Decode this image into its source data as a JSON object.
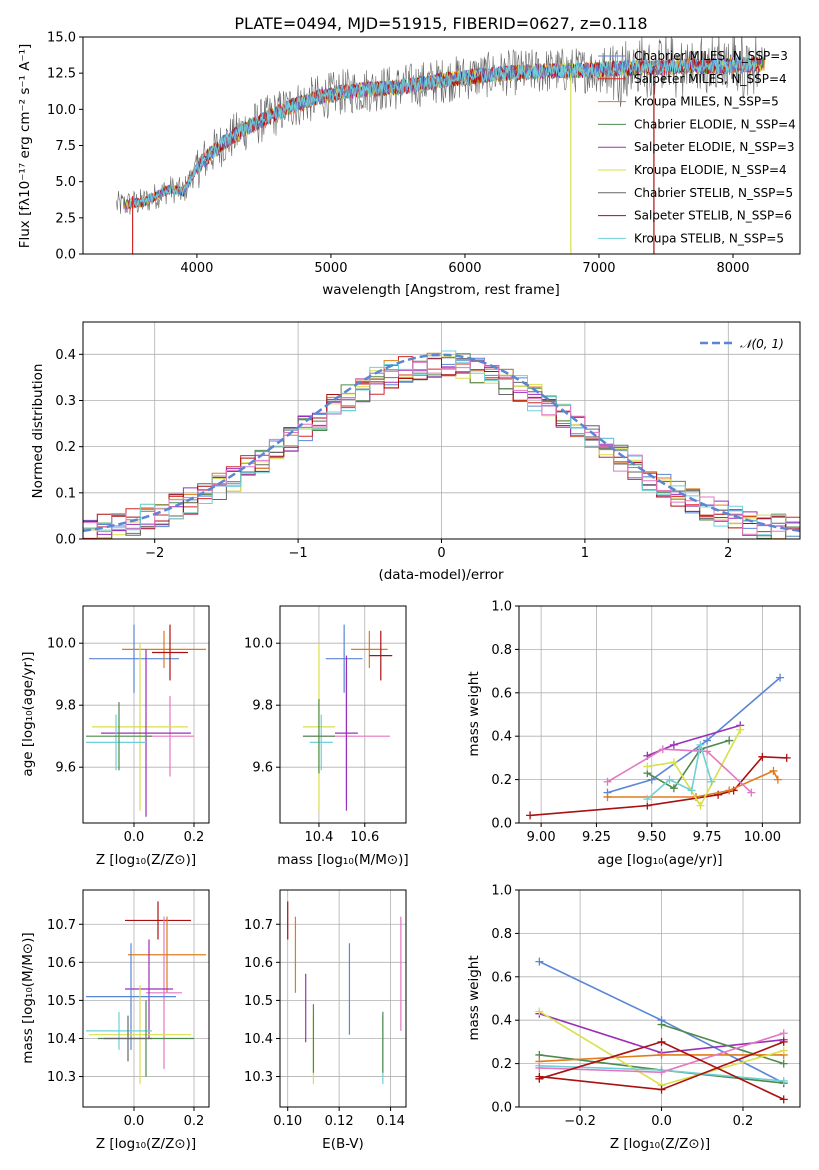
{
  "chart_data": [
    {
      "id": "spectrum",
      "type": "line",
      "title": "PLATE=0494, MJD=51915, FIBERID=0627, z=0.118",
      "xlabel": "wavelength [Angstrom, rest frame]",
      "ylabel": "Flux [fλ10⁻¹⁷ erg cm⁻² s⁻¹ A⁻¹]",
      "xlim": [
        3150,
        8500
      ],
      "ylim": [
        0,
        15
      ],
      "xticks": [
        4000,
        5000,
        6000,
        7000,
        8000
      ],
      "yticks": [
        0.0,
        2.5,
        5.0,
        7.5,
        10.0,
        12.5,
        15.0
      ],
      "legend_position": "upper right",
      "continuum": {
        "x": [
          3450,
          3600,
          3800,
          3900,
          4000,
          4100,
          4200,
          4350,
          4500,
          4700,
          4900,
          5100,
          5300,
          5500,
          5700,
          5900,
          6100,
          6300,
          6500,
          6700,
          6900,
          7100,
          7300,
          7500,
          7700,
          7900,
          8100,
          8250
        ],
        "y": [
          3.4,
          3.6,
          4.5,
          4.3,
          6.0,
          6.9,
          7.7,
          8.6,
          9.3,
          10.2,
          10.8,
          11.2,
          11.4,
          11.5,
          11.8,
          12.1,
          12.3,
          12.5,
          12.6,
          12.7,
          12.7,
          12.8,
          12.9,
          12.9,
          13.0,
          13.0,
          13.1,
          13.1
        ]
      },
      "series": [
        {
          "name": "Chabrier MILES, N_SSP=3",
          "color": "#5b86d6"
        },
        {
          "name": "Salpeter MILES, N_SSP=4",
          "color": "#d62728"
        },
        {
          "name": "Kroupa MILES, N_SSP=5",
          "color": "#e07b1d"
        },
        {
          "name": "Chabrier ELODIE, N_SSP=4",
          "color": "#4e8a4e"
        },
        {
          "name": "Salpeter ELODIE, N_SSP=3",
          "color": "#9b30b8"
        },
        {
          "name": "Kroupa ELODIE, N_SSP=4",
          "color": "#d8e04a"
        },
        {
          "name": "Chabrier STELIB, N_SSP=5",
          "color": "#666666"
        },
        {
          "name": "Salpeter STELIB, N_SSP=6",
          "color": "#aa1111"
        },
        {
          "name": "Kroupa STELIB, N_SSP=5",
          "color": "#6fd0d8"
        }
      ]
    },
    {
      "id": "residuals",
      "type": "line",
      "xlabel": "(data-model)/error",
      "ylabel": "Normed distribution",
      "xlim": [
        -2.5,
        2.5
      ],
      "ylim": [
        0,
        0.47
      ],
      "xticks": [
        -2,
        -1,
        0,
        1,
        2
      ],
      "yticks": [
        0.0,
        0.1,
        0.2,
        0.3,
        0.4
      ],
      "grid": true,
      "legend_position": "upper right",
      "reference": {
        "name": "𝒩(0, 1)",
        "color": "#5b86d6"
      },
      "bin_width": 0.1
    },
    {
      "id": "age_vs_Z",
      "type": "scatter",
      "xlabel": "Z [log₁₀(Z/Z⊙)]",
      "ylabel": "age  [log₁₀(age/yr)]",
      "xlim": [
        -0.17,
        0.25
      ],
      "ylim": [
        9.42,
        10.12
      ],
      "xticks": [
        0.0,
        0.2
      ],
      "yticks": [
        9.6,
        9.8,
        10.0
      ],
      "grid": true,
      "points": [
        {
          "x": 0.0,
          "y": 9.95,
          "xerr": 0.15,
          "yerr": 0.11,
          "color": "#5b86d6"
        },
        {
          "x": 0.1,
          "y": 9.98,
          "xerr": 0.14,
          "yerr": 0.06,
          "color": "#e07b1d"
        },
        {
          "x": 0.12,
          "y": 9.97,
          "xerr": 0.06,
          "yerr": 0.09,
          "color": "#aa1111"
        },
        {
          "x": 0.12,
          "y": 9.7,
          "xerr": 0.08,
          "yerr": 0.13,
          "color": "#e377c2"
        },
        {
          "x": 0.02,
          "y": 9.73,
          "xerr": 0.16,
          "yerr": 0.27,
          "color": "#d8e04a"
        },
        {
          "x": 0.04,
          "y": 9.71,
          "xerr": 0.15,
          "yerr": 0.27,
          "color": "#9b30b8"
        },
        {
          "x": -0.06,
          "y": 9.68,
          "xerr": 0.1,
          "yerr": 0.09,
          "color": "#6fd0d8"
        },
        {
          "x": -0.05,
          "y": 9.7,
          "xerr": 0.11,
          "yerr": 0.11,
          "color": "#4e8a4e"
        }
      ]
    },
    {
      "id": "age_vs_mass",
      "type": "scatter",
      "xlabel": "mass [log₁₀(M/M⊙)]",
      "xlim": [
        10.23,
        10.78
      ],
      "ylim": [
        9.42,
        10.12
      ],
      "xticks": [
        10.4,
        10.6
      ],
      "yticks": [
        9.6,
        9.8,
        10.0
      ],
      "grid": true,
      "points": [
        {
          "x": 10.51,
          "y": 9.95,
          "xerr": 0.08,
          "yerr": 0.11,
          "color": "#5b86d6"
        },
        {
          "x": 10.62,
          "y": 9.98,
          "xerr": 0.08,
          "yerr": 0.06,
          "color": "#e07b1d"
        },
        {
          "x": 10.67,
          "y": 9.96,
          "xerr": 0.05,
          "yerr": 0.08,
          "color": "#aa1111"
        },
        {
          "x": 10.52,
          "y": 9.7,
          "xerr": 0.19,
          "yerr": 0.21,
          "color": "#e377c2"
        },
        {
          "x": 10.4,
          "y": 9.73,
          "xerr": 0.07,
          "yerr": 0.27,
          "color": "#d8e04a"
        },
        {
          "x": 10.52,
          "y": 9.71,
          "xerr": 0.05,
          "yerr": 0.25,
          "color": "#9b30b8"
        },
        {
          "x": 10.41,
          "y": 9.68,
          "xerr": 0.05,
          "yerr": 0.09,
          "color": "#6fd0d8"
        },
        {
          "x": 10.4,
          "y": 9.7,
          "xerr": 0.07,
          "yerr": 0.12,
          "color": "#4e8a4e"
        }
      ]
    },
    {
      "id": "weight_vs_age",
      "type": "line",
      "xlabel": "age  [log₁₀(age/yr)]",
      "ylabel": "mass weight",
      "xlim": [
        8.9,
        10.17
      ],
      "ylim": [
        0.0,
        1.0
      ],
      "xticks": [
        9.0,
        9.25,
        9.5,
        9.75,
        10.0
      ],
      "yticks": [
        0.0,
        0.2,
        0.4,
        0.6,
        0.8,
        1.0
      ],
      "grid": true,
      "series": [
        {
          "color": "#5b86d6",
          "x": [
            9.3,
            9.5,
            9.75,
            10.08
          ],
          "y": [
            0.14,
            0.2,
            0.38,
            0.67
          ]
        },
        {
          "color": "#aa1111",
          "x": [
            8.95,
            9.48,
            9.8,
            9.87,
            10.0,
            10.11
          ],
          "y": [
            0.035,
            0.08,
            0.13,
            0.15,
            0.305,
            0.3
          ]
        },
        {
          "color": "#e07b1d",
          "x": [
            9.3,
            9.7,
            9.85,
            10.05,
            10.07
          ],
          "y": [
            0.12,
            0.12,
            0.15,
            0.24,
            0.2
          ]
        },
        {
          "color": "#9b30b8",
          "x": [
            9.48,
            9.6,
            9.9
          ],
          "y": [
            0.31,
            0.36,
            0.45
          ]
        },
        {
          "color": "#4e8a4e",
          "x": [
            9.48,
            9.6,
            9.72,
            9.85
          ],
          "y": [
            0.23,
            0.16,
            0.34,
            0.38
          ]
        },
        {
          "color": "#d8e04a",
          "x": [
            9.48,
            9.6,
            9.72,
            9.9
          ],
          "y": [
            0.26,
            0.28,
            0.08,
            0.43
          ]
        },
        {
          "color": "#e377c2",
          "x": [
            9.3,
            9.55,
            9.75,
            9.95
          ],
          "y": [
            0.19,
            0.34,
            0.33,
            0.14
          ]
        },
        {
          "color": "#6fd0d8",
          "x": [
            9.48,
            9.58,
            9.68,
            9.72,
            9.77
          ],
          "y": [
            0.11,
            0.2,
            0.15,
            0.36,
            0.19
          ]
        }
      ]
    },
    {
      "id": "mass_vs_Z",
      "type": "scatter",
      "xlabel": "Z [log₁₀(Z/Z⊙)]",
      "ylabel": "mass [log₁₀(M/M⊙)]",
      "xlim": [
        -0.17,
        0.25
      ],
      "ylim": [
        10.22,
        10.79
      ],
      "xticks": [
        0.0,
        0.2
      ],
      "yticks": [
        10.3,
        10.4,
        10.5,
        10.6,
        10.7
      ],
      "grid": true,
      "points": [
        {
          "x": 0.08,
          "y": 10.71,
          "xerr": 0.11,
          "yerr": 0.05,
          "color": "#aa1111"
        },
        {
          "x": 0.11,
          "y": 10.62,
          "xerr": 0.13,
          "yerr": 0.1,
          "color": "#e07b1d"
        },
        {
          "x": 0.1,
          "y": 10.52,
          "xerr": 0.06,
          "yerr": 0.2,
          "color": "#e377c2"
        },
        {
          "x": 0.05,
          "y": 10.53,
          "xerr": 0.08,
          "yerr": 0.13,
          "color": "#9b30b8"
        },
        {
          "x": -0.01,
          "y": 10.51,
          "xerr": 0.15,
          "yerr": 0.14,
          "color": "#5b86d6"
        },
        {
          "x": 0.02,
          "y": 10.41,
          "xerr": 0.17,
          "yerr": 0.13,
          "color": "#d8e04a"
        },
        {
          "x": -0.05,
          "y": 10.42,
          "xerr": 0.11,
          "yerr": 0.05,
          "color": "#6fd0d8"
        },
        {
          "x": 0.04,
          "y": 10.4,
          "xerr": 0.16,
          "yerr": 0.1,
          "color": "#4e8a4e"
        },
        {
          "x": -0.02,
          "y": 10.4,
          "xerr": 0.08,
          "yerr": 0.06,
          "color": "#666666"
        }
      ]
    },
    {
      "id": "mass_vs_ebv",
      "type": "scatter",
      "xlabel": "E(B-V)",
      "xlim": [
        0.097,
        0.146
      ],
      "ylim": [
        10.22,
        10.79
      ],
      "xticks": [
        0.1,
        0.12,
        0.14
      ],
      "yticks": [
        10.3,
        10.4,
        10.5,
        10.6,
        10.7
      ],
      "grid": true,
      "points": [
        {
          "x": 0.1,
          "y": 10.71,
          "yerr": 0.05,
          "color": "#aa1111"
        },
        {
          "x": 0.103,
          "y": 10.62,
          "yerr": 0.1,
          "color": "#e07b1d"
        },
        {
          "x": 0.107,
          "y": 10.48,
          "yerr": 0.09,
          "color": "#9b30b8"
        },
        {
          "x": 0.11,
          "y": 10.37,
          "yerr": 0.09,
          "color": "#d8e04a"
        },
        {
          "x": 0.11,
          "y": 10.4,
          "yerr": 0.09,
          "color": "#4e8a4e"
        },
        {
          "x": 0.124,
          "y": 10.53,
          "yerr": 0.12,
          "color": "#5b86d6"
        },
        {
          "x": 0.137,
          "y": 10.37,
          "yerr": 0.09,
          "color": "#6fd0d8"
        },
        {
          "x": 0.137,
          "y": 10.39,
          "yerr": 0.08,
          "color": "#4e8a4e"
        },
        {
          "x": 0.144,
          "y": 10.57,
          "yerr": 0.15,
          "color": "#e377c2"
        }
      ]
    },
    {
      "id": "weight_vs_Z",
      "type": "line",
      "xlabel": "Z [log₁₀(Z/Z⊙)]",
      "ylabel": "mass weight",
      "xlim": [
        -0.35,
        0.34
      ],
      "ylim": [
        0.0,
        1.0
      ],
      "xticks": [
        -0.2,
        0.0,
        0.2
      ],
      "yticks": [
        0.0,
        0.2,
        0.4,
        0.6,
        0.8,
        1.0
      ],
      "grid": true,
      "series": [
        {
          "color": "#5b86d6",
          "x": [
            -0.3,
            0.0,
            0.3
          ],
          "y": [
            0.67,
            0.4,
            0.11
          ]
        },
        {
          "color": "#9b30b8",
          "x": [
            -0.3,
            0.0,
            0.3
          ],
          "y": [
            0.43,
            0.25,
            0.31
          ]
        },
        {
          "color": "#4e8a4e",
          "x": [
            -0.3,
            0.0,
            0.3
          ],
          "y": [
            0.24,
            0.17,
            0.11
          ]
        },
        {
          "color": "#4e8a4e",
          "x": [
            0.0,
            0.3
          ],
          "y": [
            0.38,
            0.2
          ]
        },
        {
          "color": "#e07b1d",
          "x": [
            -0.3,
            0.0,
            0.3
          ],
          "y": [
            0.21,
            0.24,
            0.24
          ]
        },
        {
          "color": "#d8e04a",
          "x": [
            -0.3,
            0.0,
            0.3
          ],
          "y": [
            0.44,
            0.1,
            0.26
          ]
        },
        {
          "color": "#6fd0d8",
          "x": [
            -0.3,
            0.0,
            0.3
          ],
          "y": [
            0.19,
            0.17,
            0.12
          ]
        },
        {
          "color": "#e377c2",
          "x": [
            -0.3,
            0.0,
            0.3
          ],
          "y": [
            0.18,
            0.16,
            0.34
          ]
        },
        {
          "color": "#aa1111",
          "x": [
            -0.3,
            0.0,
            0.3
          ],
          "y": [
            0.14,
            0.08,
            0.3
          ]
        },
        {
          "color": "#aa1111",
          "x": [
            -0.3,
            0.0,
            0.3
          ],
          "y": [
            0.13,
            0.3,
            0.035
          ]
        }
      ]
    }
  ]
}
